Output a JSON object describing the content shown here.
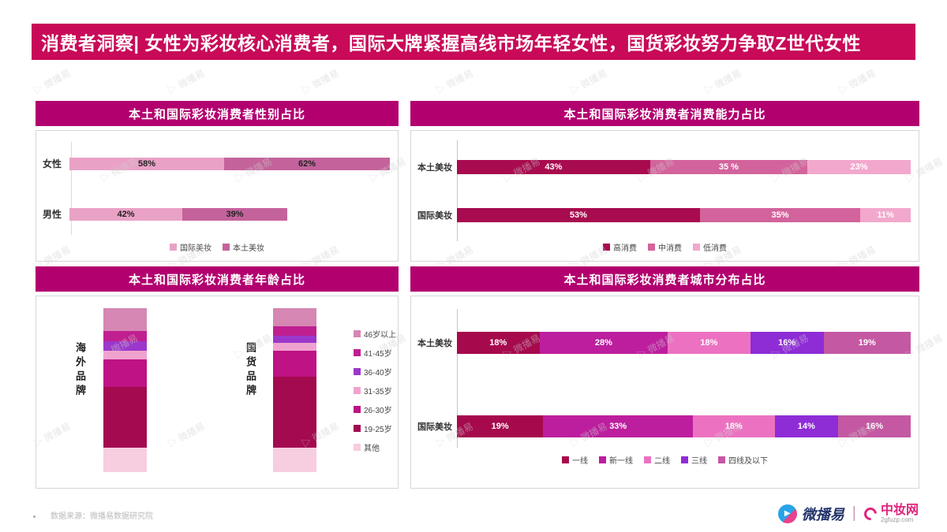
{
  "title": "消费者洞察| 女性为彩妆核心消费者，国际大牌紧握高线市场年轻女性，国货彩妆努力争取Z世代女性",
  "watermark": {
    "icon": "▷",
    "text": "微播易"
  },
  "icons": {
    "weiboyi_play": "▶"
  },
  "colors": {
    "title_bar": "#C80A58",
    "panel_header": "#B2006F",
    "panel_header_text": "#FFFFFF"
  },
  "footer": {
    "source": "数据来源：微播易数据研究院",
    "weiboyi_logo": "微播易",
    "separator": "|",
    "zhongzhuang_logo": "中妆网",
    "zhongzhuang_domain": "2gfuzp.com"
  },
  "chart_data": [
    {
      "id": "gender",
      "type": "bar",
      "orientation": "horizontal",
      "stacked": true,
      "normalized": false,
      "unit": "%",
      "title": "本土和国际彩妆消费者性别占比",
      "categories": [
        "女性",
        "男性"
      ],
      "series": [
        {
          "name": "国际美妆",
          "color": "#E9A2C6",
          "values": [
            58,
            42
          ],
          "labels": [
            "58%",
            "42%"
          ]
        },
        {
          "name": "本土美妆",
          "color": "#C4639B",
          "values": [
            62,
            39
          ],
          "labels": [
            "62%",
            "39%"
          ]
        }
      ],
      "legend_position": "bottom"
    },
    {
      "id": "spending-power",
      "type": "bar",
      "orientation": "horizontal",
      "stacked": true,
      "normalized": true,
      "unit": "%",
      "title": "本土和国际彩妆消费者消费能力占比",
      "categories": [
        "本土美妆",
        "国际美妆"
      ],
      "series": [
        {
          "name": "高消费",
          "color": "#A80B4F",
          "values": [
            43,
            53
          ],
          "labels": [
            "43%",
            "53%"
          ]
        },
        {
          "name": "中消费",
          "color": "#D3639C",
          "values": [
            35,
            35
          ],
          "labels": [
            "35 %",
            "35%"
          ]
        },
        {
          "name": "低消费",
          "color": "#F2A8CC",
          "values": [
            23,
            11
          ],
          "labels": [
            "23%",
            "11%"
          ]
        }
      ],
      "legend_position": "bottom"
    },
    {
      "id": "age",
      "type": "bar",
      "orientation": "vertical",
      "stacked": true,
      "normalized": true,
      "unit": "%",
      "title": "本土和国际彩妆消费者年龄占比",
      "categories": [
        "海外品牌",
        "国货品牌"
      ],
      "series": [
        {
          "name": "46岁以上",
          "color": "#D687B3",
          "values": [
            14,
            11
          ]
        },
        {
          "name": "41-45岁",
          "color": "#C01F90",
          "values": [
            6,
            6
          ]
        },
        {
          "name": "36-40岁",
          "color": "#9B37CB",
          "values": [
            6,
            4
          ]
        },
        {
          "name": "31-35岁",
          "color": "#F0A2CF",
          "values": [
            5,
            5
          ]
        },
        {
          "name": "26-30岁",
          "color": "#BF1284",
          "values": [
            17,
            16
          ]
        },
        {
          "name": "19-25岁",
          "color": "#A30A4F",
          "values": [
            37,
            43
          ]
        },
        {
          "name": "其他",
          "color": "#F7CDE0",
          "values": [
            15,
            15
          ]
        }
      ],
      "legend_position": "right"
    },
    {
      "id": "city-tier",
      "type": "bar",
      "orientation": "horizontal",
      "stacked": true,
      "normalized": true,
      "unit": "%",
      "title": "本土和国际彩妆消费者城市分布占比",
      "categories": [
        "本土美妆",
        "国际美妆"
      ],
      "series": [
        {
          "name": "一线",
          "color": "#A60A4D",
          "values": [
            18,
            19
          ],
          "labels": [
            "18%",
            "19%"
          ]
        },
        {
          "name": "新一线",
          "color": "#BC1E9E",
          "values": [
            28,
            33
          ],
          "labels": [
            "28%",
            "33%"
          ]
        },
        {
          "name": "二线",
          "color": "#EC72C1",
          "values": [
            18,
            18
          ],
          "labels": [
            "18%",
            "18%"
          ]
        },
        {
          "name": "三线",
          "color": "#8E2CD6",
          "values": [
            16,
            14
          ],
          "labels": [
            "16%",
            "14%"
          ]
        },
        {
          "name": "四线及以下",
          "color": "#C558A3",
          "values": [
            19,
            16
          ],
          "labels": [
            "19%",
            "16%"
          ]
        }
      ],
      "legend_position": "bottom"
    }
  ]
}
